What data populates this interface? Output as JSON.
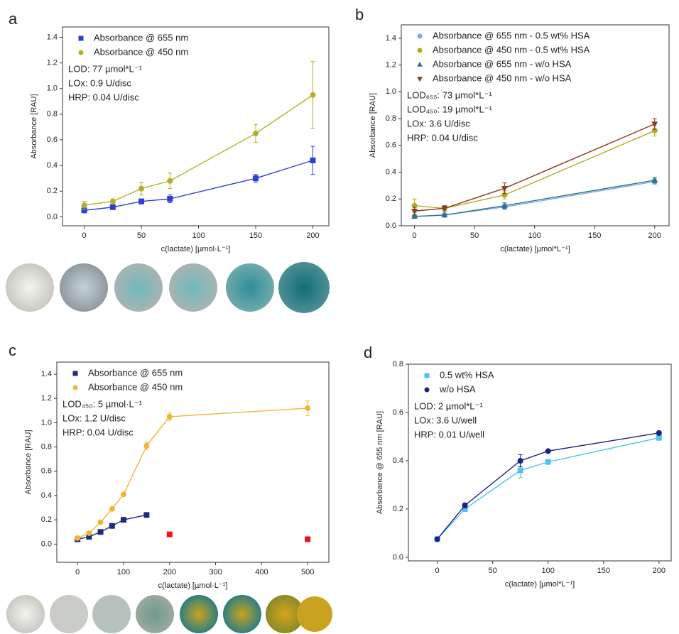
{
  "chart_data": [
    {
      "type": "scatter",
      "label": "a",
      "xlabel": "c(lactate) [µmol·L⁻¹]",
      "ylabel": "Absorbance [RAU]",
      "x": [
        0,
        25,
        50,
        75,
        150,
        200
      ],
      "series": [
        {
          "name": "Absorbance @ 655 nm",
          "color": "#2b3fd1",
          "marker": "square",
          "values": [
            0.05,
            0.075,
            0.12,
            0.14,
            0.3,
            0.44
          ],
          "errors": [
            0.01,
            0.01,
            0.02,
            0.03,
            0.03,
            0.11
          ]
        },
        {
          "name": "Absorbance @ 450 nm",
          "color": "#b5ae26",
          "marker": "circle",
          "values": [
            0.09,
            0.12,
            0.22,
            0.28,
            0.65,
            0.95
          ],
          "errors": [
            0.03,
            0.02,
            0.05,
            0.06,
            0.07,
            0.26
          ]
        }
      ],
      "annotations": [
        "LOD: 77 µmol*L⁻¹",
        "LOx: 0.9 U/disc",
        "HRP: 0.04 U/disc"
      ],
      "xlim": [
        -19,
        214
      ],
      "xticks": [
        0,
        50,
        100,
        150,
        200
      ],
      "ylim": [
        -0.07,
        1.48
      ],
      "yticks": [
        {
          "value": 0,
          "label": "0.0"
        },
        0.2,
        0.4,
        0.6,
        0.8,
        {
          "value": 1,
          "label": "1.0"
        },
        1.2,
        1.4
      ]
    },
    {
      "type": "scatter",
      "label": "b",
      "xlabel": "c(lactate) [µmol*L⁻¹]",
      "ylabel": "Absorbance [RAU]",
      "x": [
        0,
        25,
        75,
        200
      ],
      "series": [
        {
          "name": "Absorbance @ 655 nm - 0.5 wt% HSA",
          "color": "#7fa6ea",
          "marker": "circle",
          "values": [
            0.07,
            0.08,
            0.14,
            0.33
          ],
          "errors": [
            0.01,
            0.01,
            0.02,
            0.02
          ]
        },
        {
          "name": "Absorbance @ 450 nm - 0.5 wt% HSA",
          "color": "#b3ac22",
          "marker": "circle",
          "values": [
            0.15,
            0.13,
            0.23,
            0.71
          ],
          "errors": [
            0.05,
            0.02,
            0.03,
            0.04
          ]
        },
        {
          "name": "Absorbance @ 655 nm - w/o HSA",
          "color": "#2b7787",
          "marker": "triangle-up",
          "values": [
            0.07,
            0.08,
            0.15,
            0.34
          ],
          "errors": [
            0.01,
            0.01,
            0.02,
            0.02
          ]
        },
        {
          "name": "Absorbance @ 450 nm - w/o HSA",
          "color": "#8a3a1c",
          "marker": "triangle-down",
          "values": [
            0.11,
            0.13,
            0.28,
            0.76
          ],
          "errors": [
            0.03,
            0.02,
            0.04,
            0.04
          ]
        }
      ],
      "annotations": [
        "LOD₆₅₅: 73 µmol*L⁻¹",
        "LOD₄₅₀: 19 µmol*L⁻¹",
        "LOx: 3.6 U/disc",
        "HRP: 0.04 U/disc"
      ],
      "xlim": [
        -11,
        212
      ],
      "xticks": [
        0,
        50,
        100,
        150,
        200
      ],
      "ylim": [
        0,
        1.5
      ],
      "yticks": [
        {
          "value": 0,
          "label": "0.0"
        },
        0.2,
        0.4,
        0.6,
        0.8,
        {
          "value": 1,
          "label": "1.0"
        },
        1.2,
        1.4
      ]
    },
    {
      "type": "scatter",
      "label": "c",
      "xlabel": "c(lactate) [µmol·L⁻¹]",
      "ylabel": "Absorbance [RAU]",
      "series": [
        {
          "name": "Absorbance @ 655 nm",
          "color": "#1f2a7a",
          "marker": "square",
          "x": [
            0,
            25,
            50,
            75,
            100,
            150
          ],
          "values": [
            0.04,
            0.06,
            0.1,
            0.15,
            0.2,
            0.24
          ],
          "errors": [
            0.005,
            0.005,
            0.01,
            0.01,
            0.01,
            0.01
          ]
        },
        {
          "name": "Absorbance @ 450 nm",
          "color": "#f0b43a",
          "marker": "circle",
          "x": [
            0,
            25,
            50,
            75,
            100,
            150,
            200,
            500
          ],
          "values": [
            0.05,
            0.09,
            0.18,
            0.29,
            0.41,
            0.81,
            1.05,
            1.12
          ],
          "errors": [
            0.01,
            0.01,
            0.01,
            0.01,
            0.01,
            0.03,
            0.03,
            0.06
          ]
        },
        {
          "color": "#e8141c",
          "marker": "square",
          "line": false,
          "x": [
            200,
            500
          ],
          "values": [
            0.08,
            0.04
          ]
        }
      ],
      "annotations": [
        "LOD₄₅₀: 5 µmol·L⁻¹",
        "LOx: 1.2 U/disc",
        "HRP: 0.04 U/disc"
      ],
      "xlim": [
        -45,
        546
      ],
      "xticks": [
        0,
        100,
        200,
        300,
        400,
        500
      ],
      "ylim": [
        -0.15,
        1.5
      ],
      "yticks": [
        {
          "value": 0,
          "label": "0.0"
        },
        0.2,
        0.4,
        0.6,
        0.8,
        {
          "value": 1,
          "label": "1.0"
        },
        1.2,
        1.4
      ]
    },
    {
      "type": "scatter",
      "label": "d",
      "xlabel": "c(lactate) [µmol*L⁻¹]",
      "ylabel": "Absorbance @ 655 nm [RAU]",
      "x": [
        0,
        25,
        75,
        100,
        200
      ],
      "series": [
        {
          "name": "0.5 wt% HSA",
          "color": "#4fc3f0",
          "marker": "square",
          "values": [
            0.075,
            0.2,
            0.36,
            0.395,
            0.495
          ],
          "errors": [
            0.005,
            0.01,
            0.03,
            0.01,
            0.01
          ]
        },
        {
          "name": "w/o HSA",
          "color": "#1a2380",
          "marker": "circle",
          "values": [
            0.075,
            0.215,
            0.4,
            0.44,
            0.515
          ],
          "errors": [
            0.005,
            0.01,
            0.025,
            0.005,
            0.005
          ]
        }
      ],
      "annotations": [
        "LOD: 2 µmol*L⁻¹",
        "LOx: 3.6 U/well",
        "HRP: 0.01 U/well"
      ],
      "xlim": [
        -26,
        211
      ],
      "xticks": [
        0,
        50,
        100,
        150,
        200
      ],
      "ylim": [
        -0.015,
        0.8
      ],
      "yticks": [
        {
          "value": 0,
          "label": "0.0"
        },
        0.2,
        0.4,
        0.6,
        0.8
      ]
    }
  ]
}
